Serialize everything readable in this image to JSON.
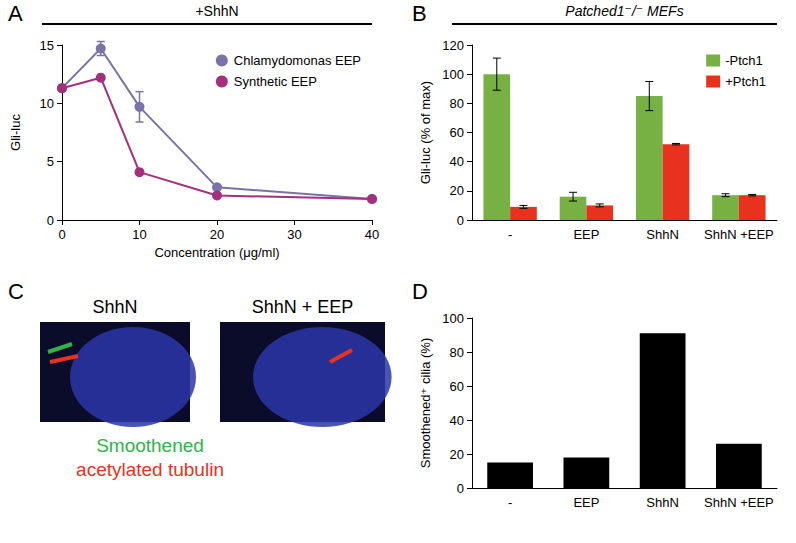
{
  "chart_data": [
    {
      "label": "A",
      "type": "line",
      "title": "+ShhN",
      "x": [
        0,
        5,
        10,
        20,
        40
      ],
      "series": [
        {
          "name": "Chlamydomonas EEP",
          "color": "#7b72a8",
          "marker": "circle",
          "values": [
            11.3,
            14.7,
            9.7,
            2.8,
            1.8
          ],
          "errors": [
            null,
            0.6,
            1.3,
            null,
            null
          ]
        },
        {
          "name": "Synthetic EEP",
          "color": "#a3307c",
          "marker": "circle",
          "values": [
            11.3,
            12.2,
            4.1,
            2.1,
            1.8
          ],
          "errors": [
            null,
            null,
            null,
            null,
            null
          ]
        }
      ],
      "xlabel": "Concentration (μg/ml)",
      "ylabel": "Gli-luc",
      "xlim": [
        0,
        40
      ],
      "xticks": [
        0,
        10,
        20,
        30,
        40
      ],
      "ylim": [
        0,
        15
      ],
      "yticks": [
        0,
        5,
        10,
        15
      ],
      "legend": "upper right"
    },
    {
      "label": "B",
      "type": "bar",
      "title": "Patched1⁻/⁻ MEFs",
      "categories": [
        "-",
        "EEP",
        "ShhN",
        "ShhN +EEP"
      ],
      "series": [
        {
          "name": "-Ptch1",
          "color": "#77b043",
          "values": [
            100,
            16,
            85,
            17
          ],
          "errors": [
            11,
            3,
            10,
            1
          ]
        },
        {
          "name": "+Ptch1",
          "color": "#e8321d",
          "values": [
            9,
            10,
            52,
            17
          ],
          "errors": [
            1,
            1,
            0.5,
            0.5
          ]
        }
      ],
      "ylabel": "Gli-luc (% of max)",
      "ylim": [
        0,
        120
      ],
      "yticks": [
        0,
        20,
        40,
        60,
        80,
        100,
        120
      ],
      "legend": "upper right"
    },
    {
      "label": "D",
      "type": "bar",
      "categories": [
        "-",
        "EEP",
        "ShhN",
        "ShhN +EEP"
      ],
      "values": [
        15,
        18,
        91,
        26
      ],
      "color": "#000000",
      "ylabel": "Smoothened⁺ cilia (%)",
      "ylim": [
        0,
        100
      ],
      "yticks": [
        0,
        20,
        40,
        60,
        80,
        100
      ]
    }
  ],
  "image_panel": {
    "label": "C",
    "captions": [
      "ShhN",
      "ShhN + EEP"
    ],
    "legend": [
      {
        "text": "Smoothened",
        "color": "#2fb34a"
      },
      {
        "text": "acetylated tubulin",
        "color": "#e8321d"
      }
    ]
  }
}
